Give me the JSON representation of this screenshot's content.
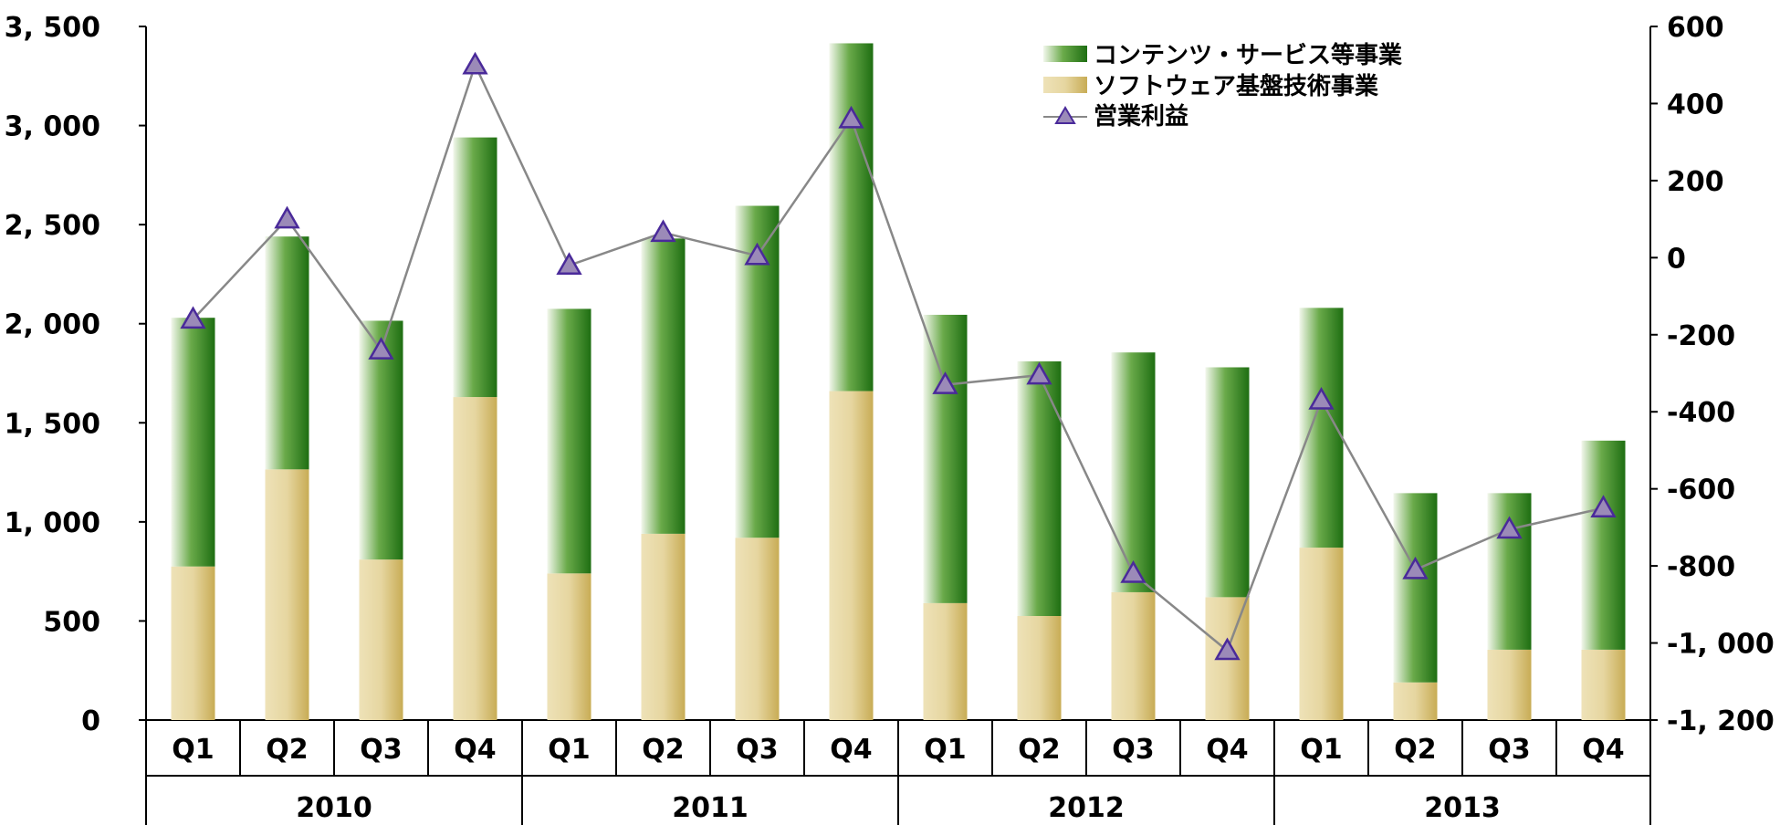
{
  "chart_data": {
    "type": "bar",
    "stacked": true,
    "grid": false,
    "legend_position": "top-right",
    "years": [
      "2010",
      "2011",
      "2012",
      "2013"
    ],
    "quarters": [
      "Q1",
      "Q2",
      "Q3",
      "Q4",
      "Q1",
      "Q2",
      "Q3",
      "Q4",
      "Q1",
      "Q2",
      "Q3",
      "Q4",
      "Q1",
      "Q2",
      "Q3",
      "Q4"
    ],
    "y_left": {
      "min": 0,
      "max": 3500,
      "ticks": [
        "0",
        "500",
        "1, 000",
        "1, 500",
        "2, 000",
        "2, 500",
        "3, 000",
        "3, 500"
      ]
    },
    "y_right": {
      "min": -1200,
      "max": 600,
      "ticks": [
        "-1, 200",
        "-1, 000",
        "-800",
        "-600",
        "-400",
        "-200",
        "0",
        "200",
        "400",
        "600"
      ]
    },
    "series": [
      {
        "name": "ソフトウェア基盤技術事業",
        "kind": "bar",
        "color": "#e6d6a0",
        "values": [
          775,
          1265,
          810,
          1630,
          740,
          940,
          920,
          1660,
          590,
          525,
          645,
          620,
          870,
          190,
          355,
          355
        ]
      },
      {
        "name": "コンテンツ・サービス等事業",
        "kind": "bar",
        "color": "#2e7d1e",
        "values": [
          1255,
          1175,
          1205,
          1310,
          1335,
          1490,
          1675,
          1755,
          1455,
          1285,
          1210,
          1160,
          1210,
          955,
          790,
          1055
        ]
      },
      {
        "name": "営業利益",
        "kind": "line",
        "axis": "right",
        "color": "#7b68a6",
        "values": [
          -160,
          100,
          -240,
          500,
          -20,
          65,
          5,
          360,
          -330,
          -305,
          -820,
          -1020,
          -370,
          -810,
          -705,
          -650
        ]
      }
    ]
  }
}
